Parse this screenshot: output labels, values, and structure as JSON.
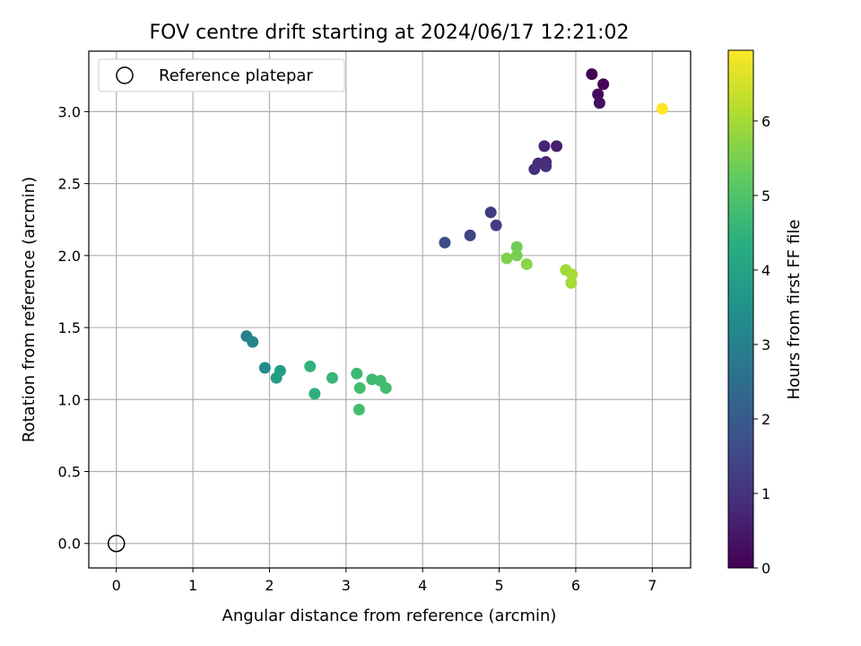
{
  "chart_data": {
    "type": "scatter",
    "title": "FOV centre drift starting at 2024/06/17 12:21:02",
    "xlabel": "Angular distance from reference (arcmin)",
    "ylabel": "Rotation from reference (arcmin)",
    "xlim": [
      -0.36,
      7.5
    ],
    "ylim": [
      -0.17,
      3.42
    ],
    "x_ticks": [
      0,
      1,
      2,
      3,
      4,
      5,
      6,
      7
    ],
    "y_ticks": [
      0.0,
      0.5,
      1.0,
      1.5,
      2.0,
      2.5,
      3.0
    ],
    "grid": true,
    "legend": {
      "position": "top-left",
      "entries": [
        "Reference platepar"
      ]
    },
    "reference_point": {
      "x": 0,
      "y": 0
    },
    "colorbar": {
      "label": "Hours from first FF file",
      "colormap": "viridis",
      "range": [
        0,
        6.95
      ],
      "ticks": [
        0,
        1,
        2,
        3,
        4,
        5,
        6
      ]
    },
    "points": [
      {
        "x": 6.21,
        "y": 3.26,
        "h": 0.0
      },
      {
        "x": 6.36,
        "y": 3.19,
        "h": 0.1
      },
      {
        "x": 6.29,
        "y": 3.12,
        "h": 0.2
      },
      {
        "x": 6.31,
        "y": 3.06,
        "h": 0.3
      },
      {
        "x": 5.75,
        "y": 2.76,
        "h": 0.6
      },
      {
        "x": 5.59,
        "y": 2.76,
        "h": 0.7
      },
      {
        "x": 5.61,
        "y": 2.65,
        "h": 0.8
      },
      {
        "x": 5.51,
        "y": 2.64,
        "h": 0.85
      },
      {
        "x": 5.61,
        "y": 2.62,
        "h": 0.9
      },
      {
        "x": 5.46,
        "y": 2.6,
        "h": 0.95
      },
      {
        "x": 4.89,
        "y": 2.3,
        "h": 1.2
      },
      {
        "x": 4.96,
        "y": 2.21,
        "h": 1.25
      },
      {
        "x": 4.62,
        "y": 2.14,
        "h": 1.4
      },
      {
        "x": 4.29,
        "y": 2.09,
        "h": 1.6
      },
      {
        "x": 1.7,
        "y": 1.44,
        "h": 3.0
      },
      {
        "x": 1.78,
        "y": 1.4,
        "h": 3.1
      },
      {
        "x": 1.94,
        "y": 1.22,
        "h": 3.3
      },
      {
        "x": 2.14,
        "y": 1.2,
        "h": 3.9
      },
      {
        "x": 2.09,
        "y": 1.15,
        "h": 3.8
      },
      {
        "x": 2.53,
        "y": 1.23,
        "h": 4.5
      },
      {
        "x": 2.59,
        "y": 1.04,
        "h": 4.4
      },
      {
        "x": 2.82,
        "y": 1.15,
        "h": 4.6
      },
      {
        "x": 3.14,
        "y": 1.18,
        "h": 4.7
      },
      {
        "x": 3.34,
        "y": 1.14,
        "h": 4.7
      },
      {
        "x": 3.45,
        "y": 1.13,
        "h": 4.75
      },
      {
        "x": 3.18,
        "y": 1.08,
        "h": 4.8
      },
      {
        "x": 3.52,
        "y": 1.08,
        "h": 4.8
      },
      {
        "x": 3.17,
        "y": 0.93,
        "h": 4.8
      },
      {
        "x": 5.23,
        "y": 2.06,
        "h": 5.4
      },
      {
        "x": 5.1,
        "y": 1.98,
        "h": 5.6
      },
      {
        "x": 5.23,
        "y": 2.0,
        "h": 5.5
      },
      {
        "x": 5.36,
        "y": 1.94,
        "h": 5.7
      },
      {
        "x": 5.87,
        "y": 1.9,
        "h": 5.95
      },
      {
        "x": 5.95,
        "y": 1.87,
        "h": 6.0
      },
      {
        "x": 5.94,
        "y": 1.81,
        "h": 6.0
      },
      {
        "x": 7.13,
        "y": 3.02,
        "h": 6.95
      }
    ]
  }
}
